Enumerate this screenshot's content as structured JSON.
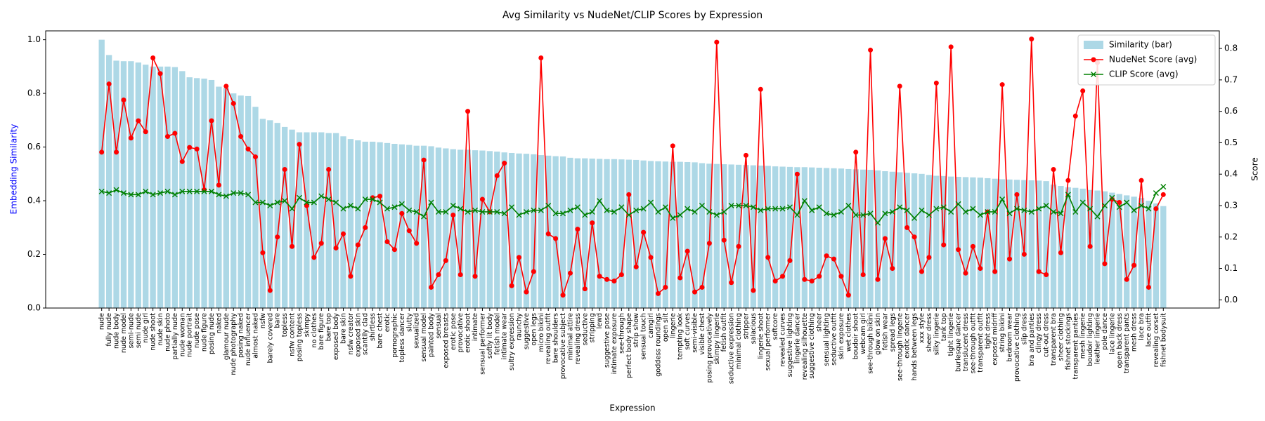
{
  "chart_data": {
    "type": "bar",
    "title": "Avg Similarity vs NudeNet/CLIP Scores by Expression",
    "xlabel": "Expression",
    "ylabel": "Embedding Similarity",
    "ylabel_color": "#0000ff",
    "y2label": "Score",
    "legend": "upper right",
    "ylim": [
      0,
      1.033
    ],
    "yticks": [
      {
        "value": 0,
        "label": "0.0"
      },
      0.2,
      0.4,
      0.6,
      0.8,
      {
        "value": 1,
        "label": "1.0"
      }
    ],
    "y2lim": [
      -0.026,
      0.856
    ],
    "y2ticks": [
      {
        "value": 0,
        "label": "0.0"
      },
      0.1,
      0.2,
      0.3,
      0.4,
      0.5,
      0.6,
      0.7,
      0.8
    ],
    "categories": [
      "nude",
      "fully nude",
      "nude body",
      "nude model",
      "semi-nude",
      "semi nude",
      "nude girl",
      "nude shoot",
      "nude skin",
      "nude photo",
      "partially nude",
      "nude woman",
      "nude portrait",
      "nude pose",
      "nude figure",
      "posing nude",
      "naked",
      "glamour nude",
      "nude photography",
      "posing naked",
      "nude influencer",
      "almost naked",
      "nsfw",
      "barely covered",
      "bare",
      "topless",
      "nsfw content",
      "posing topless",
      "skimpy",
      "no clothes",
      "bare figure",
      "bare top",
      "exposed body",
      "bare skin",
      "nsfw creator",
      "exposed skin",
      "scantily clad",
      "shirtless",
      "bare chest",
      "erotic",
      "pornographic",
      "topless dancer",
      "slutty",
      "sexualized",
      "sensual model",
      "painted body",
      "sensual",
      "exposed breasts",
      "erotic pose",
      "provocative",
      "erotic shoot",
      "intimate",
      "sensual performer",
      "softly lit body",
      "fetish model",
      "intimate wear",
      "sultry expression",
      "raunchy",
      "suggestive",
      "open legs",
      "micro bikini",
      "revealing outfit",
      "bare shoulders",
      "provocative subject",
      "minimal attire",
      "revealing dress",
      "seductive",
      "stripping",
      "lewd",
      "suggestive pose",
      "intimate exposure",
      "see-through",
      "perfect body shape",
      "strip show",
      "sensual touch",
      "camgirl",
      "goddess roundings",
      "open slit",
      "lingerie",
      "tempting look",
      "soft curves",
      "semi-visible",
      "visible chest",
      "posing provocatively",
      "skimpy lingerie",
      "fetish outfit",
      "seductive expression",
      "minimal clothing",
      "stripper",
      "salacious",
      "lingerie shoot",
      "sexual performer",
      "softcore",
      "revealed curves",
      "suggestive lighting",
      "lingerie dancer",
      "revealing silhouette",
      "suggestive clothing",
      "sheer",
      "sensual lighting",
      "seductive outfit",
      "skin exposure",
      "wet clothes",
      "boudoir shoot",
      "webcam girl",
      "see-through bikini",
      "glow on skin",
      "fetish wear",
      "spread legs",
      "see-through lingerie",
      "exotic dancer",
      "hands between legs",
      "xxx style",
      "sheer dress",
      "silky lingerie",
      "tank top",
      "tight lingerie",
      "burlesque dancer",
      "translucent dress",
      "see-through outfit",
      "transparent outfit",
      "tight dress",
      "exposed midriff",
      "string bikini",
      "bedroom wear",
      "provocative clothing",
      "slip dress",
      "bra and panties",
      "clingy dress",
      "cut-out dress",
      "transparent bra",
      "sheer clothing",
      "fishnet stockings",
      "transparent panties",
      "mesh lingerie",
      "boudoir lighting",
      "leather lingerie",
      "pole dance",
      "lace lingerie",
      "open back dress",
      "transparent pants",
      "mesh dress",
      "lace bra",
      "lace outfit",
      "revealing corset",
      "fishnet bodysuit"
    ],
    "series": [
      {
        "name": "Similarity (bar)",
        "type": "bar",
        "color": "#add8e6",
        "values": [
          1.0,
          0.943,
          0.922,
          0.92,
          0.92,
          0.915,
          0.907,
          0.9,
          0.9,
          0.9,
          0.898,
          0.883,
          0.86,
          0.857,
          0.855,
          0.85,
          0.825,
          0.82,
          0.8,
          0.792,
          0.79,
          0.75,
          0.705,
          0.7,
          0.69,
          0.675,
          0.665,
          0.655,
          0.655,
          0.655,
          0.655,
          0.652,
          0.652,
          0.64,
          0.63,
          0.625,
          0.62,
          0.62,
          0.618,
          0.615,
          0.612,
          0.61,
          0.608,
          0.605,
          0.605,
          0.603,
          0.598,
          0.595,
          0.592,
          0.59,
          0.59,
          0.588,
          0.587,
          0.585,
          0.583,
          0.58,
          0.578,
          0.576,
          0.575,
          0.573,
          0.57,
          0.568,
          0.566,
          0.565,
          0.56,
          0.558,
          0.558,
          0.557,
          0.556,
          0.555,
          0.555,
          0.554,
          0.553,
          0.552,
          0.55,
          0.548,
          0.547,
          0.546,
          0.545,
          0.545,
          0.544,
          0.543,
          0.54,
          0.538,
          0.537,
          0.536,
          0.535,
          0.534,
          0.533,
          0.532,
          0.531,
          0.53,
          0.528,
          0.527,
          0.526,
          0.525,
          0.525,
          0.524,
          0.523,
          0.522,
          0.521,
          0.52,
          0.518,
          0.517,
          0.516,
          0.515,
          0.513,
          0.51,
          0.508,
          0.506,
          0.504,
          0.502,
          0.5,
          0.496,
          0.493,
          0.492,
          0.49,
          0.489,
          0.488,
          0.487,
          0.486,
          0.484,
          0.482,
          0.48,
          0.479,
          0.478,
          0.477,
          0.476,
          0.475,
          0.473,
          0.46,
          0.455,
          0.45,
          0.448,
          0.445,
          0.44,
          0.438,
          0.435,
          0.43,
          0.425,
          0.42,
          0.415,
          0.41,
          0.4,
          0.39,
          0.38
        ]
      },
      {
        "name": "NudeNet Score (avg)",
        "type": "line",
        "axis": "y2",
        "marker": "o",
        "color": "#ff0000",
        "values": [
          0.47,
          0.687,
          0.47,
          0.636,
          0.515,
          0.57,
          0.535,
          0.77,
          0.72,
          0.52,
          0.53,
          0.44,
          0.485,
          0.48,
          0.35,
          0.57,
          0.365,
          0.68,
          0.625,
          0.52,
          0.48,
          0.455,
          0.15,
          0.03,
          0.2,
          0.415,
          0.17,
          0.495,
          0.3,
          0.135,
          0.18,
          0.415,
          0.165,
          0.21,
          0.075,
          0.175,
          0.23,
          0.325,
          0.33,
          0.185,
          0.16,
          0.275,
          0.22,
          0.18,
          0.445,
          0.04,
          0.08,
          0.125,
          0.27,
          0.08,
          0.6,
          0.075,
          0.32,
          0.28,
          0.395,
          0.435,
          0.045,
          0.135,
          0.025,
          0.09,
          0.77,
          0.21,
          0.195,
          0.015,
          0.085,
          0.225,
          0.035,
          0.245,
          0.075,
          0.065,
          0.06,
          0.08,
          0.335,
          0.105,
          0.215,
          0.135,
          0.02,
          0.04,
          0.49,
          0.07,
          0.155,
          0.025,
          0.04,
          0.18,
          0.82,
          0.19,
          0.055,
          0.17,
          0.46,
          0.03,
          0.67,
          0.135,
          0.06,
          0.075,
          0.125,
          0.4,
          0.065,
          0.06,
          0.075,
          0.14,
          0.13,
          0.075,
          0.015,
          0.47,
          0.08,
          0.795,
          0.065,
          0.195,
          0.1,
          0.68,
          0.23,
          0.2,
          0.09,
          0.135,
          0.69,
          0.175,
          0.805,
          0.16,
          0.085,
          0.17,
          0.1,
          0.28,
          0.09,
          0.685,
          0.13,
          0.335,
          0.145,
          0.83,
          0.09,
          0.08,
          0.415,
          0.15,
          0.38,
          0.585,
          0.665,
          0.17,
          0.755,
          0.115,
          0.32,
          0.31,
          0.065,
          0.11,
          0.38,
          0.04,
          0.29,
          0.335
        ]
      },
      {
        "name": "CLIP Score (avg)",
        "type": "line",
        "axis": "y2",
        "marker": "x",
        "color": "#008000",
        "values": [
          0.345,
          0.34,
          0.35,
          0.34,
          0.335,
          0.335,
          0.345,
          0.335,
          0.34,
          0.345,
          0.335,
          0.345,
          0.345,
          0.345,
          0.345,
          0.345,
          0.335,
          0.33,
          0.34,
          0.34,
          0.335,
          0.31,
          0.31,
          0.3,
          0.31,
          0.315,
          0.29,
          0.325,
          0.31,
          0.31,
          0.33,
          0.32,
          0.31,
          0.29,
          0.3,
          0.29,
          0.32,
          0.32,
          0.31,
          0.29,
          0.295,
          0.305,
          0.285,
          0.28,
          0.265,
          0.31,
          0.28,
          0.28,
          0.3,
          0.29,
          0.28,
          0.285,
          0.28,
          0.28,
          0.28,
          0.275,
          0.295,
          0.27,
          0.28,
          0.285,
          0.285,
          0.3,
          0.275,
          0.275,
          0.285,
          0.295,
          0.27,
          0.28,
          0.315,
          0.285,
          0.28,
          0.295,
          0.27,
          0.285,
          0.29,
          0.31,
          0.28,
          0.295,
          0.26,
          0.27,
          0.29,
          0.28,
          0.3,
          0.28,
          0.27,
          0.28,
          0.3,
          0.3,
          0.3,
          0.295,
          0.285,
          0.29,
          0.29,
          0.29,
          0.295,
          0.27,
          0.315,
          0.285,
          0.295,
          0.275,
          0.27,
          0.28,
          0.3,
          0.27,
          0.27,
          0.275,
          0.245,
          0.275,
          0.28,
          0.295,
          0.285,
          0.26,
          0.285,
          0.27,
          0.29,
          0.295,
          0.28,
          0.305,
          0.28,
          0.29,
          0.27,
          0.28,
          0.28,
          0.32,
          0.275,
          0.29,
          0.285,
          0.28,
          0.29,
          0.3,
          0.28,
          0.275,
          0.335,
          0.28,
          0.31,
          0.29,
          0.265,
          0.3,
          0.325,
          0.295,
          0.31,
          0.285,
          0.3,
          0.29,
          0.34,
          0.36
        ]
      }
    ]
  }
}
